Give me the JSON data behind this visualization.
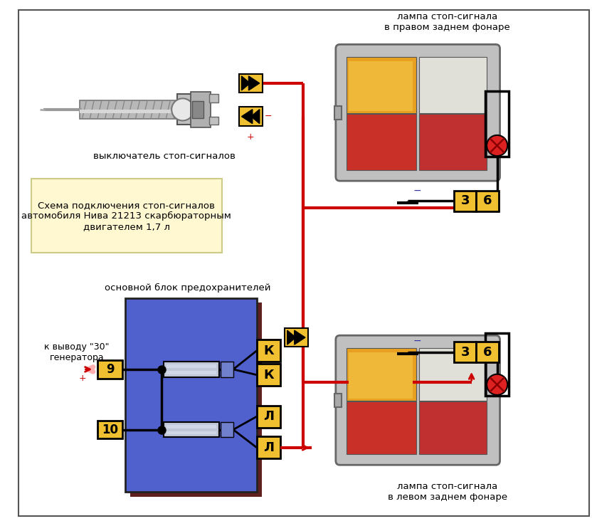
{
  "title": "Схема подключения стоп-сигналов\nавтомобиля Нива 21213 скарбюраторным\nдвигателем 1,7 л",
  "label_switch": "выключатель стоп-сигналов",
  "label_fuse": "основной блок предохранителей",
  "label_gen": "к выводу \"30\"\nгенератора",
  "label_lamp_right": "лампа стоп-сигнала\nв правом заднем фонаре",
  "label_lamp_left": "лампа стоп-сигнала\nв левом заднем фонаре",
  "bg_color": "#ffffff",
  "yellow": "#f0c030",
  "blue": "#5060cc",
  "red": "#cc0000",
  "black": "#000000",
  "fuse_bg": "#fff8d0",
  "fuse_shadow": "#602020",
  "lamp_gray": "#c0c0c0",
  "lamp_orange": "#e08020",
  "lamp_amber": "#e8a020",
  "lamp_white": "#e0e0d8",
  "lamp_red": "#c83028",
  "lamp_dark_gray": "#888888",
  "fuse_element": "#c0c8d8",
  "pink_arrow": "#ffb0b0"
}
